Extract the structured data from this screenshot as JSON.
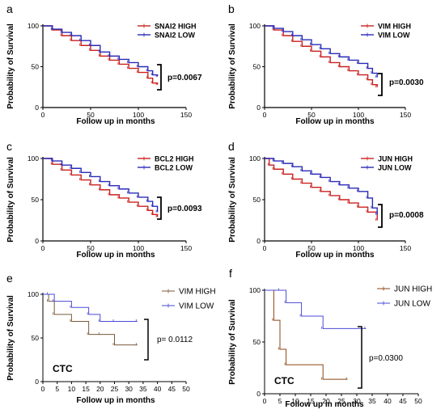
{
  "chart_data": [
    {
      "type": "line",
      "panel_label": "a",
      "xlabel": "Follow up in  months",
      "ylabel": "Probability of Survival",
      "xlim": [
        0,
        150
      ],
      "ylim": [
        0,
        100
      ],
      "xticks": [
        0,
        50,
        100,
        150
      ],
      "yticks": [
        0,
        50,
        100
      ],
      "p_value": "p=0.0067",
      "annotation": "",
      "legend_position": "top-right",
      "style": "bold",
      "series": [
        {
          "name": "SNAI2 HIGH",
          "color": "#c9211e",
          "x": [
            0,
            10,
            20,
            30,
            40,
            50,
            60,
            70,
            80,
            90,
            100,
            110,
            115,
            120
          ],
          "y": [
            100,
            95,
            88,
            82,
            76,
            70,
            63,
            58,
            53,
            48,
            43,
            36,
            30,
            28
          ]
        },
        {
          "name": "SNAI2 LOW",
          "color": "#2a2ab8",
          "x": [
            0,
            10,
            20,
            30,
            40,
            50,
            60,
            70,
            80,
            90,
            100,
            110,
            115,
            120
          ],
          "y": [
            100,
            96,
            92,
            88,
            82,
            76,
            68,
            63,
            59,
            55,
            50,
            45,
            40,
            38
          ]
        }
      ]
    },
    {
      "type": "line",
      "panel_label": "b",
      "xlabel": "Follow up in  months",
      "ylabel": "Probability of Survival",
      "xlim": [
        0,
        150
      ],
      "ylim": [
        0,
        100
      ],
      "xticks": [
        0,
        50,
        100,
        150
      ],
      "yticks": [
        0,
        50,
        100
      ],
      "p_value": "p=0.0030",
      "annotation": "",
      "legend_position": "top-right",
      "style": "bold",
      "series": [
        {
          "name": "VIM HIGH",
          "color": "#c9211e",
          "x": [
            0,
            10,
            20,
            30,
            40,
            50,
            60,
            70,
            80,
            90,
            100,
            110,
            115,
            120
          ],
          "y": [
            100,
            95,
            88,
            81,
            75,
            69,
            62,
            55,
            50,
            45,
            40,
            34,
            28,
            25
          ]
        },
        {
          "name": "VIM LOW",
          "color": "#2a2ab8",
          "x": [
            0,
            10,
            20,
            30,
            40,
            50,
            60,
            70,
            80,
            90,
            100,
            110,
            115,
            120
          ],
          "y": [
            100,
            97,
            93,
            88,
            83,
            77,
            72,
            66,
            62,
            58,
            54,
            48,
            42,
            37
          ]
        }
      ]
    },
    {
      "type": "line",
      "panel_label": "c",
      "xlabel": "Follow up in  months",
      "ylabel": "Probability of Survival",
      "xlim": [
        0,
        150
      ],
      "ylim": [
        0,
        100
      ],
      "xticks": [
        0,
        50,
        100,
        150
      ],
      "yticks": [
        0,
        50,
        100
      ],
      "p_value": "p=0.0093",
      "annotation": "",
      "legend_position": "top-right",
      "style": "bold",
      "series": [
        {
          "name": "BCL2 HIGH",
          "color": "#c9211e",
          "x": [
            0,
            10,
            20,
            30,
            40,
            50,
            60,
            70,
            80,
            90,
            100,
            110,
            115,
            120
          ],
          "y": [
            100,
            93,
            86,
            80,
            74,
            68,
            62,
            56,
            52,
            47,
            42,
            37,
            32,
            29
          ]
        },
        {
          "name": "BCL2 LOW",
          "color": "#2a2ab8",
          "x": [
            0,
            10,
            20,
            30,
            40,
            50,
            60,
            70,
            80,
            90,
            100,
            110,
            115,
            120
          ],
          "y": [
            100,
            97,
            92,
            88,
            83,
            78,
            72,
            67,
            63,
            58,
            53,
            48,
            42,
            35
          ]
        }
      ]
    },
    {
      "type": "line",
      "panel_label": "d",
      "xlabel": "Follow up in  months",
      "ylabel": "Probability of Survival",
      "xlim": [
        0,
        150
      ],
      "ylim": [
        0,
        100
      ],
      "xticks": [
        0,
        50,
        100,
        150
      ],
      "yticks": [
        0,
        50,
        100
      ],
      "p_value": "p=0.0008",
      "annotation": "",
      "legend_position": "top-right",
      "style": "bold",
      "series": [
        {
          "name": "JUN HIGH",
          "color": "#c9211e",
          "x": [
            0,
            5,
            10,
            20,
            30,
            40,
            50,
            60,
            70,
            80,
            90,
            100,
            110,
            120
          ],
          "y": [
            100,
            92,
            87,
            81,
            75,
            70,
            65,
            60,
            55,
            50,
            46,
            41,
            35,
            25
          ]
        },
        {
          "name": "JUN LOW",
          "color": "#2a2ab8",
          "x": [
            0,
            10,
            20,
            30,
            40,
            50,
            60,
            70,
            80,
            90,
            100,
            110,
            115,
            120
          ],
          "y": [
            100,
            97,
            94,
            90,
            85,
            81,
            77,
            72,
            68,
            64,
            60,
            52,
            40,
            32
          ]
        }
      ]
    },
    {
      "type": "line",
      "panel_label": "e",
      "xlabel": "Follow up in  months",
      "ylabel": "Probability of Survival",
      "xlim": [
        0,
        50
      ],
      "ylim": [
        0,
        100
      ],
      "xticks": [
        0,
        5,
        10,
        15,
        20,
        25,
        30,
        35,
        40,
        45,
        50
      ],
      "yticks": [
        0,
        50,
        100
      ],
      "p_value": "p= 0.0112",
      "annotation": "CTC",
      "legend_position": "top-right",
      "style": "light",
      "series": [
        {
          "name": "VIM HIGH",
          "color": "#7a5a3a",
          "x": [
            0,
            2,
            4,
            10,
            16,
            20,
            25,
            33
          ],
          "y": [
            100,
            92,
            77,
            69,
            54,
            54,
            42,
            42
          ]
        },
        {
          "name": "VIM LOW",
          "color": "#4a4ad8",
          "x": [
            0,
            2,
            4,
            10,
            16,
            20,
            25,
            33
          ],
          "y": [
            100,
            100,
            92,
            85,
            77,
            69,
            69,
            69
          ]
        }
      ]
    },
    {
      "type": "line",
      "panel_label": "f",
      "xlabel": "Follow up in  months",
      "ylabel": "Probability of Survival",
      "xlim": [
        0,
        50
      ],
      "ylim": [
        0,
        100
      ],
      "xticks": [
        0,
        5,
        10,
        15,
        20,
        25,
        30,
        35,
        40,
        45,
        50
      ],
      "yticks": [
        0,
        50,
        100
      ],
      "p_value": "p=0.0300",
      "annotation": "CTC",
      "legend_position": "top-right",
      "style": "light",
      "series": [
        {
          "name": "JUN HIGH",
          "color": "#8b4513",
          "x": [
            0,
            3,
            5,
            7,
            19,
            27
          ],
          "y": [
            100,
            71,
            43,
            28,
            14,
            14
          ]
        },
        {
          "name": "JUN LOW",
          "color": "#4a4ad8",
          "x": [
            0,
            5,
            7,
            12,
            19,
            33
          ],
          "y": [
            100,
            100,
            88,
            75,
            63,
            63
          ]
        }
      ]
    }
  ]
}
